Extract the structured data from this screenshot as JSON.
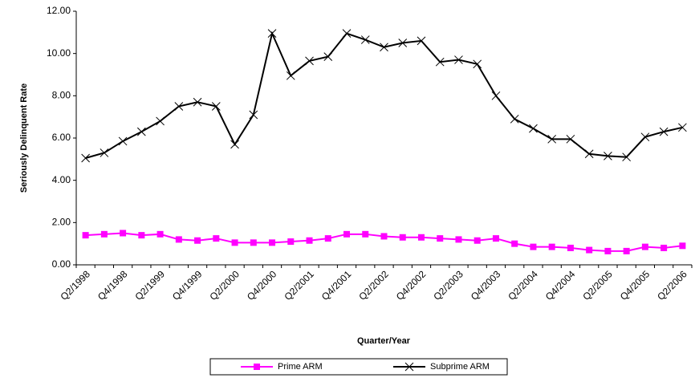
{
  "chart_data": {
    "type": "line",
    "x_label": "Quarter/Year",
    "y_label": "Seriously Delinquent Rate",
    "categories": [
      "Q2/1998",
      null,
      "Q4/1998",
      null,
      "Q2/1999",
      null,
      "Q4/1999",
      null,
      "Q2/2000",
      null,
      "Q4/2000",
      null,
      "Q2/2001",
      null,
      "Q4/2001",
      null,
      "Q2/2002",
      null,
      "Q4/2002",
      null,
      "Q2/2003",
      null,
      "Q4/2003",
      null,
      "Q2/2004",
      null,
      "Q4/2004",
      null,
      "Q2/2005",
      null,
      "Q4/2005",
      null,
      "Q2/2006"
    ],
    "series": [
      {
        "name": "Prime ARM",
        "color": "#ff00ff",
        "marker": "square",
        "values": [
          1.4,
          1.45,
          1.5,
          1.4,
          1.45,
          1.2,
          1.15,
          1.25,
          1.05,
          1.05,
          1.05,
          1.1,
          1.15,
          1.25,
          1.45,
          1.45,
          1.35,
          1.3,
          1.3,
          1.25,
          1.2,
          1.15,
          1.25,
          1.0,
          0.85,
          0.85,
          0.8,
          0.7,
          0.65,
          0.65,
          0.85,
          0.8,
          0.9
        ]
      },
      {
        "name": "Subprime ARM",
        "color": "#000000",
        "marker": "x",
        "values": [
          5.05,
          5.3,
          5.85,
          6.3,
          6.8,
          7.5,
          7.7,
          7.5,
          5.7,
          7.1,
          10.95,
          8.95,
          9.65,
          9.85,
          10.95,
          10.65,
          10.3,
          10.5,
          10.6,
          9.6,
          9.7,
          9.5,
          8.0,
          6.9,
          6.45,
          5.95,
          5.95,
          5.25,
          5.15,
          5.1,
          6.05,
          6.3,
          6.5
        ]
      }
    ],
    "ylim": [
      0,
      12
    ],
    "yticks": [
      {
        "value": 0,
        "label": "0.00"
      },
      {
        "value": 2,
        "label": "2.00"
      },
      {
        "value": 4,
        "label": "4.00"
      },
      {
        "value": 6,
        "label": "6.00"
      },
      {
        "value": 8,
        "label": "8.00"
      },
      {
        "value": 10,
        "label": "10.00"
      },
      {
        "value": 12,
        "label": "12.00"
      }
    ],
    "legend": "bottom"
  }
}
